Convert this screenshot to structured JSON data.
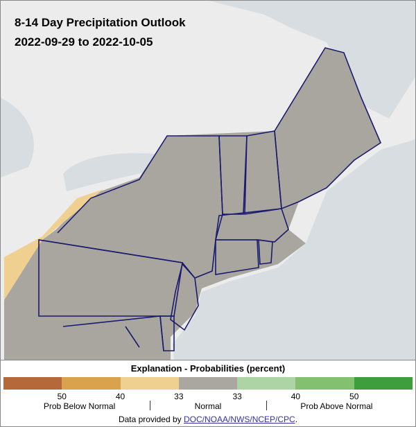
{
  "header": {
    "title": "8-14 Day Precipitation Outlook",
    "subtitle": "2022-09-29 to 2022-10-05"
  },
  "legend": {
    "title": "Explanation - Probabilities (percent)",
    "colors": [
      "#b5693a",
      "#d9a24c",
      "#f0d090",
      "#a9a7a0",
      "#acd4a4",
      "#83c070",
      "#3e9e3e"
    ],
    "ticks": [
      "50",
      "40",
      "33",
      "33",
      "40",
      "50"
    ],
    "categories": [
      "Prob Below Normal",
      "Normal",
      "Prob Above Normal"
    ]
  },
  "footer": {
    "text": "Data provided by",
    "link": "DOC/NOAA/NWS/NCEP/CPC",
    "end": "."
  }
}
